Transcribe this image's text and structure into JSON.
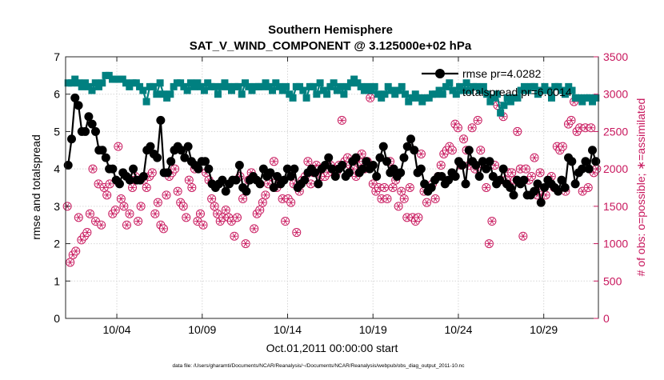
{
  "chart_data": {
    "type": "line",
    "title": "Southern Hemisphere",
    "subtitle": "SAT_V_WIND_COMPONENT @ 3.125000e+02 hPa",
    "xlabel": "Oct.01,2011 00:00:00 start",
    "ylabel_left": "rmse and totalspread",
    "ylabel_right": "# of obs: o=possible; ∗=assimilated",
    "footnote": "data file: /Users/gharamti/Documents/NCAR/Reanalysis/~/Documents/NCAR/Reanalysis/webpub/obs_diag_output_2011-10.nc",
    "x_range_days": [
      1.0,
      32.2
    ],
    "ylim_left": [
      0,
      7
    ],
    "ylim_right": [
      0,
      3500
    ],
    "x_ticks": [
      {
        "day": 4,
        "label": "10/04"
      },
      {
        "day": 9,
        "label": "10/09"
      },
      {
        "day": 14,
        "label": "10/14"
      },
      {
        "day": 19,
        "label": "10/19"
      },
      {
        "day": 24,
        "label": "10/24"
      },
      {
        "day": 29,
        "label": "10/29"
      }
    ],
    "y_ticks_left": [
      "0",
      "1",
      "2",
      "3",
      "4",
      "5",
      "6",
      "7"
    ],
    "y_ticks_right": [
      "0",
      "500",
      "1000",
      "1500",
      "2000",
      "2500",
      "3000",
      "3500"
    ],
    "legend": [
      {
        "label": "rmse pr=4.0282",
        "color": "#000000",
        "marker": "circle"
      },
      {
        "label": "totalspread pr=6.0014",
        "color": "#008080",
        "marker": "square"
      }
    ],
    "series": [
      {
        "name": "rmse",
        "color": "#000000",
        "axis": "left",
        "values": [
          4.1,
          4.8,
          5.9,
          5.7,
          5.0,
          5.0,
          5.4,
          5.2,
          5.0,
          4.5,
          4.5,
          4.3,
          4.0,
          4.0,
          3.7,
          3.6,
          3.9,
          3.8,
          3.7,
          4.0,
          3.7,
          3.7,
          3.8,
          4.5,
          4.6,
          4.4,
          4.3,
          5.3,
          3.9,
          3.9,
          4.2,
          4.5,
          4.6,
          4.5,
          4.3,
          4.6,
          4.2,
          4.1,
          4.0,
          4.2,
          4.2,
          4.0,
          3.6,
          3.5,
          3.6,
          3.7,
          3.4,
          3.6,
          3.7,
          3.7,
          4.1,
          3.5,
          3.4,
          3.7,
          3.8,
          3.7,
          3.6,
          4.0,
          3.8,
          3.9,
          3.5,
          3.8,
          3.6,
          3.7,
          4.0,
          3.8,
          4.0,
          3.5,
          3.6,
          3.7,
          3.9,
          4.0,
          3.9,
          3.6,
          4.0,
          4.1,
          4.3,
          4.0,
          3.8,
          4.0,
          4.1,
          3.8,
          3.9,
          4.2,
          4.3,
          3.9,
          4.0,
          4.2,
          4.0,
          4.1,
          3.8,
          4.3,
          4.6,
          4.2,
          3.9,
          4.0,
          3.8,
          3.9,
          4.3,
          4.6,
          4.8,
          4.5,
          3.9,
          4.0,
          3.6,
          3.4,
          3.5,
          3.7,
          3.8,
          3.8,
          3.6,
          3.7,
          3.9,
          3.8,
          4.2,
          4.1,
          3.6,
          4.5,
          4.2,
          4.1,
          3.8,
          4.2,
          4.0,
          4.2,
          3.8,
          3.6,
          3.7,
          4.0,
          3.6,
          3.5,
          3.3,
          3.7,
          3.6,
          3.7,
          3.3,
          3.3,
          3.4,
          3.6,
          3.1,
          3.5,
          3.7,
          3.6,
          3.5,
          3.4,
          3.7,
          3.5,
          4.3,
          4.2,
          3.6,
          3.9,
          4.0,
          4.2,
          4.0,
          4.5,
          4.2
        ]
      },
      {
        "name": "totalspread",
        "color": "#008080",
        "axis": "left",
        "values": [
          6.3,
          6.3,
          6.4,
          6.3,
          6.2,
          6.3,
          6.2,
          6.1,
          6.3,
          6.2,
          6.3,
          6.5,
          6.5,
          6.4,
          6.4,
          6.4,
          6.4,
          6.3,
          6.2,
          6.3,
          6.3,
          6.2,
          6.1,
          5.8,
          6.2,
          6.2,
          6.0,
          6.3,
          6.0,
          5.9,
          6.0,
          6.2,
          6.3,
          6.3,
          6.2,
          6.1,
          6.3,
          6.2,
          6.3,
          6.2,
          6.1,
          6.3,
          6.2,
          6.2,
          6.0,
          6.2,
          6.3,
          6.2,
          6.1,
          6.2,
          6.2,
          6.0,
          6.3,
          6.2,
          6.1,
          6.2,
          6.2,
          6.2,
          6.3,
          6.2,
          6.1,
          6.3,
          6.2,
          6.1,
          6.2,
          6.0,
          5.9,
          6.2,
          6.2,
          6.1,
          5.9,
          6.2,
          6.2,
          6.0,
          6.3,
          6.1,
          6.0,
          6.2,
          6.3,
          6.1,
          6.2,
          6.0,
          6.2,
          6.3,
          6.4,
          6.3,
          6.2,
          6.1,
          6.2,
          6.1,
          6.2,
          6.0,
          5.9,
          6.0,
          6.2,
          6.1,
          6.0,
          6.1,
          6.2,
          6.0,
          5.8,
          5.9,
          6.0,
          5.9,
          5.8,
          5.9,
          5.9,
          6.0,
          6.0,
          6.1,
          6.0,
          6.2,
          6.3,
          6.1,
          6.0,
          6.2,
          6.1,
          6.3,
          6.1,
          6.2,
          6.2,
          6.1,
          6.2,
          6.0,
          5.8,
          5.9,
          6.0,
          5.5,
          5.7,
          5.9,
          5.8,
          5.9,
          5.9,
          6.1,
          6.2,
          6.1,
          6.2,
          6.2,
          6.0,
          6.1,
          6.2,
          6.1,
          5.9,
          6.2,
          6.2,
          6.1,
          6.0,
          6.2,
          6.1,
          5.9,
          5.9,
          5.8,
          5.9,
          5.9,
          5.8,
          5.9
        ]
      },
      {
        "name": "# of obs",
        "color": "#c8175d",
        "axis": "right",
        "values": [
          1500,
          750,
          850,
          900,
          1350,
          1050,
          1100,
          1150,
          1400,
          2000,
          1300,
          1800,
          1250,
          1750,
          1650,
          1800,
          1400,
          1450,
          2300,
          1600,
          1500,
          1250,
          1400,
          1750,
          1900,
          1300,
          1500,
          1850,
          1750,
          1900,
          1950,
          1400,
          1550,
          1250,
          1200,
          1650,
          1900,
          1950,
          2000,
          1700,
          1550,
          1500,
          1350,
          1850,
          1750,
          2000,
          1300,
          1400,
          1250,
          1950,
          1850,
          1600,
          1500,
          1400,
          1300,
          1350,
          1450,
          1350,
          1300,
          1100,
          1350,
          1900,
          1600,
          1000,
          1850,
          1950,
          1200,
          1400,
          1450,
          1550,
          1650,
          1800,
          1900,
          2100,
          1750,
          1800,
          1600,
          1300,
          1600,
          1550,
          1800,
          1150,
          1700,
          1850,
          1900,
          2100,
          1800,
          1950,
          2050,
          2000,
          1900,
          1900,
          1950,
          2050,
          2000,
          1950,
          2050,
          2650,
          2100,
          2150,
          2050,
          2000,
          1900,
          2100,
          2200,
          2000,
          2100,
          2950,
          1800,
          1700,
          1750,
          1600,
          1750,
          1600,
          2100,
          1750,
          1850,
          1500,
          1700,
          1600,
          1350,
          1750,
          1350,
          1300,
          1350,
          2200,
          1700,
          1550,
          1750,
          1800,
          1600,
          1900,
          2050,
          2200,
          2250,
          2300,
          2250,
          2600,
          2550,
          2050,
          2400,
          2250,
          2050,
          2550,
          2000,
          2650,
          2250,
          2050,
          1750,
          1000,
          1300,
          2050,
          2850,
          1850,
          2700,
          1850,
          1950,
          1950,
          1850,
          2500,
          2000,
          1100,
          2000,
          1850,
          1900,
          2150,
          1650,
          1950,
          1700,
          1650,
          1850,
          1900,
          1750,
          2300,
          2250,
          2300,
          1700,
          2600,
          2650,
          2900,
          2500,
          2550,
          1700,
          2550,
          1750,
          2550,
          1950,
          2000
        ]
      }
    ]
  }
}
